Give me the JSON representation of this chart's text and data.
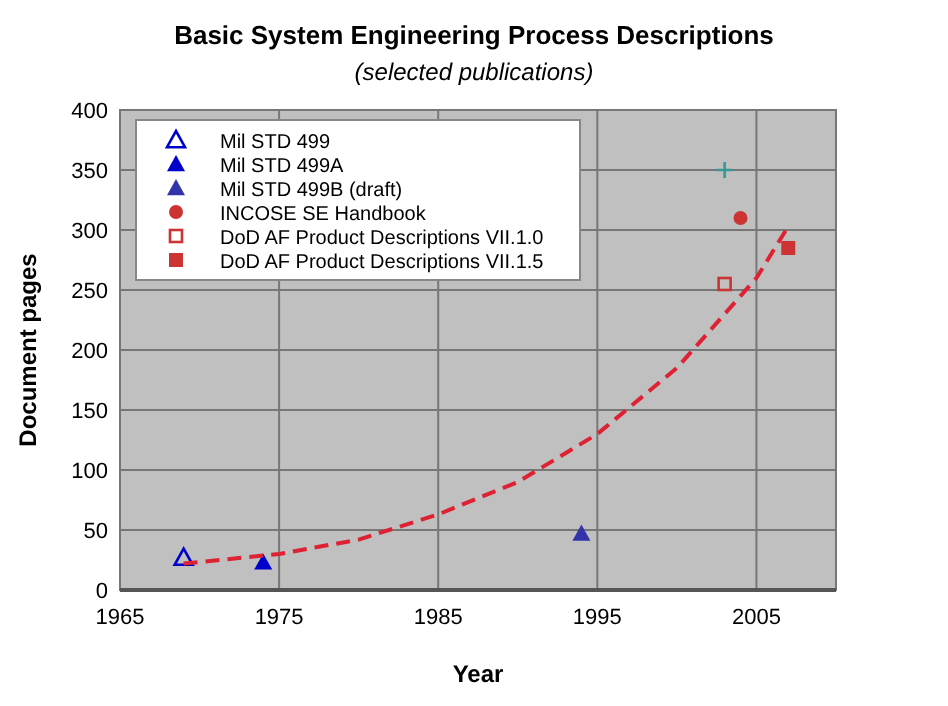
{
  "chart_data": {
    "type": "scatter",
    "title": "Basic System Engineering Process Descriptions",
    "subtitle": "(selected publications)",
    "xlabel": "Year",
    "ylabel": "Document pages",
    "xlim": [
      1965,
      2010
    ],
    "xticks": [
      1965,
      1975,
      1985,
      1995,
      2005
    ],
    "ylim": [
      0,
      400
    ],
    "yticks": [
      0,
      50,
      100,
      150,
      200,
      250,
      300,
      350,
      400
    ],
    "grid": true,
    "legend": "top left",
    "series": [
      {
        "name": "Mil STD 499",
        "color": "#0000cc",
        "marker": "triangle-open",
        "x": [
          1969
        ],
        "values": [
          27
        ]
      },
      {
        "name": "Mil STD 499A",
        "color": "#0000cc",
        "marker": "triangle",
        "x": [
          1974
        ],
        "values": [
          23
        ]
      },
      {
        "name": "Mil STD 499B (draft)",
        "color": "#3333aa",
        "marker": "triangle",
        "x": [
          1994
        ],
        "values": [
          47
        ]
      },
      {
        "name": "INCOSE SE Handbook",
        "color": "#cc3333",
        "marker": "circle",
        "x": [
          2004
        ],
        "values": [
          310
        ]
      },
      {
        "name": "DoD AF Product Descriptions VII.1.0",
        "color": "#cc3333",
        "marker": "square-open",
        "x": [
          2003
        ],
        "values": [
          255
        ]
      },
      {
        "name": "DoD AF Product Descriptions VII.1.5",
        "color": "#cc3333",
        "marker": "square",
        "x": [
          2007
        ],
        "values": [
          285
        ]
      },
      {
        "color": "#339999",
        "marker": "cross",
        "x": [
          2003
        ],
        "values": [
          350
        ]
      },
      {
        "type": "line",
        "color": "#dd2233",
        "line_style": "dashed",
        "x": [
          1969,
          1975,
          1980,
          1985,
          1990,
          1995,
          2000,
          2003,
          2005,
          2007
        ],
        "values": [
          22,
          30,
          42,
          63,
          90,
          130,
          185,
          230,
          260,
          303
        ]
      }
    ]
  }
}
